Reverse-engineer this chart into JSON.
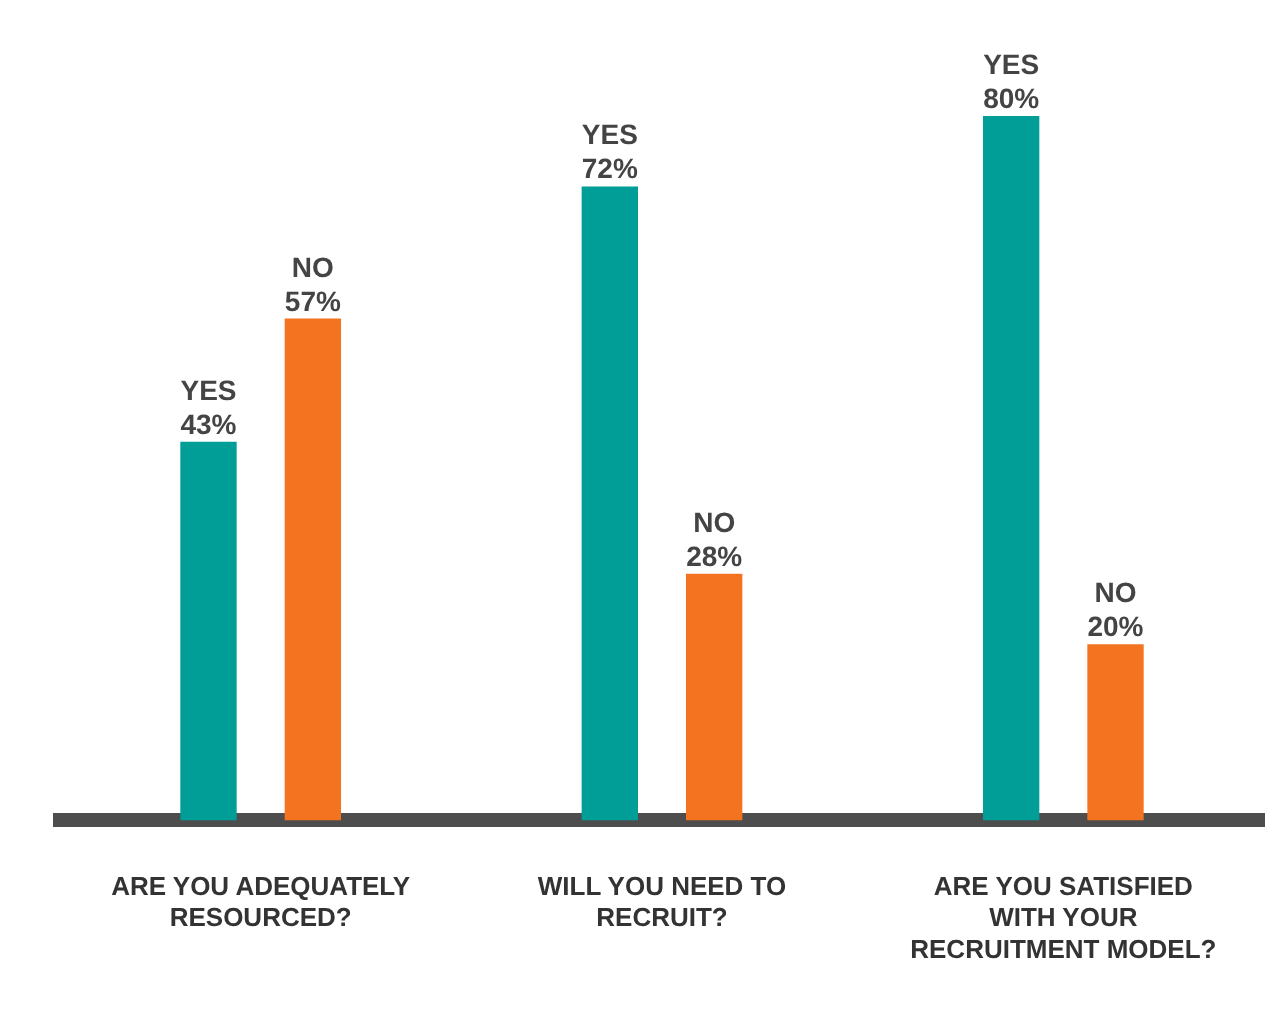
{
  "chart_data": {
    "type": "bar",
    "categories": [
      "ARE YOU ADEQUATELY RESOURCED?",
      "WILL YOU NEED TO RECRUIT?",
      "ARE YOU SATISFIED WITH YOUR RECRUITMENT MODEL?"
    ],
    "series": [
      {
        "name": "YES",
        "color": "#009e96",
        "values": [
          43,
          72,
          80
        ],
        "value_labels": [
          "43%",
          "72%",
          "80%"
        ]
      },
      {
        "name": "NO",
        "color": "#f47321",
        "values": [
          57,
          28,
          20
        ],
        "value_labels": [
          "57%",
          "28%",
          "20%"
        ]
      }
    ],
    "legend": false,
    "grid": false,
    "tick_labels": "x"
  }
}
